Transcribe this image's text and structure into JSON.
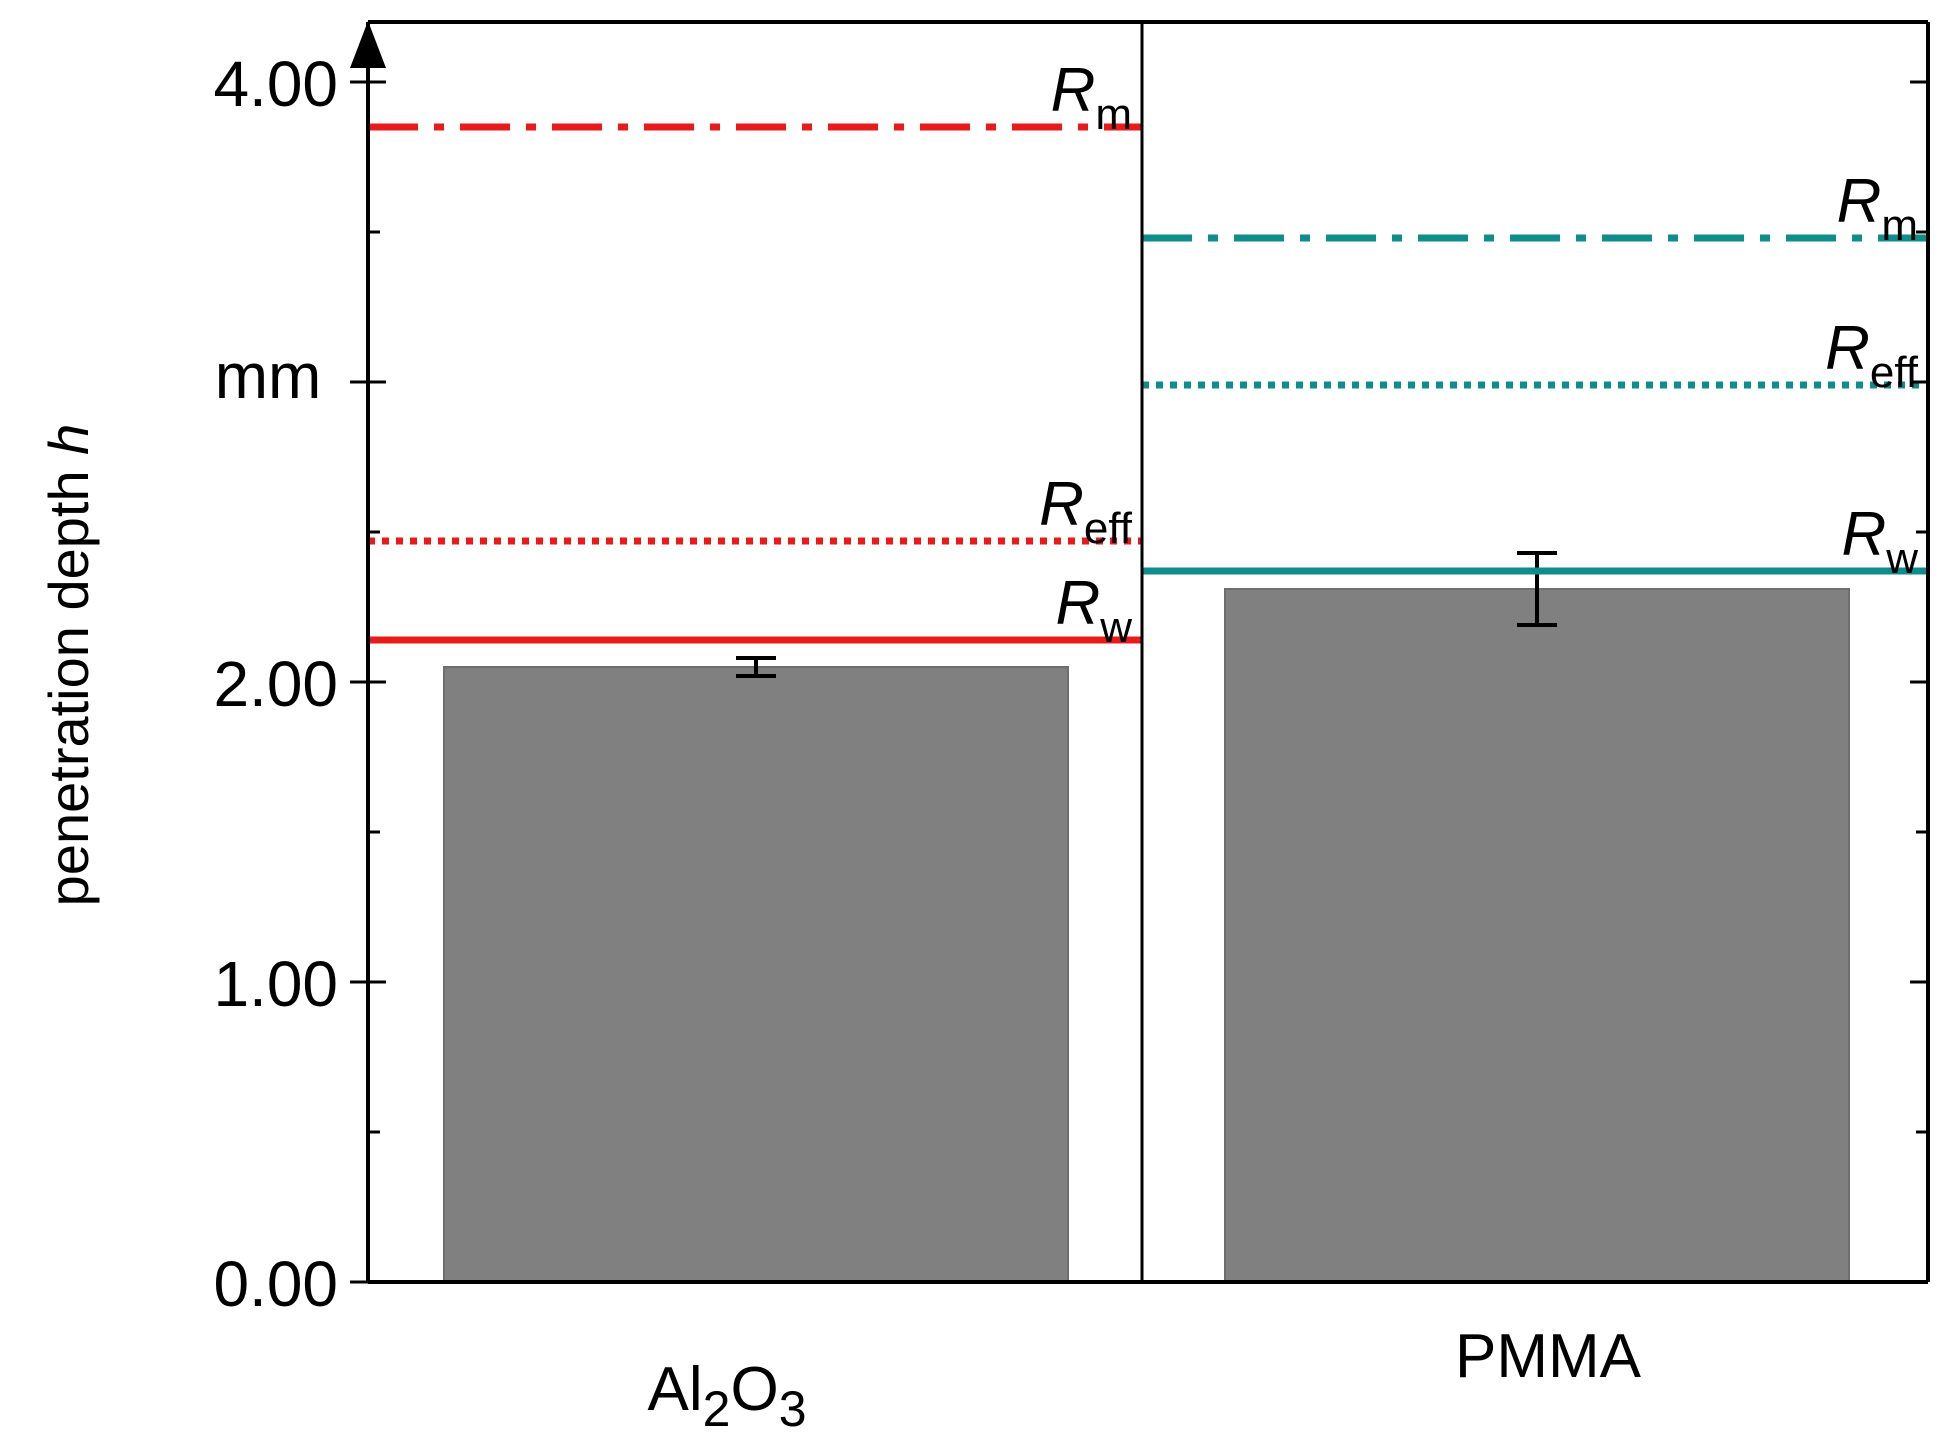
{
  "chart_data": {
    "type": "bar",
    "ylabel_parts": [
      "penetration depth ",
      "h"
    ],
    "y_unit": "mm",
    "ylim": [
      0,
      4.2
    ],
    "y_tick_labels": [
      {
        "value": 0,
        "label": "0.00"
      },
      {
        "value": 1,
        "label": "1.00"
      },
      {
        "value": 2,
        "label": "2.00"
      },
      {
        "value": 4,
        "label": "4.00"
      }
    ],
    "y_minor_ticks": [
      0.5,
      1.5,
      2.5,
      3.5
    ],
    "panels": [
      {
        "category": "Al2O3",
        "label_parts": [
          "Al",
          "2",
          "O",
          "3"
        ],
        "value": 2.05,
        "error": 0.03,
        "color": "#e81a1a",
        "ranges": [
          {
            "name": "R_m",
            "italic": "R",
            "sub": "m",
            "value": 3.85,
            "style": "dashdot"
          },
          {
            "name": "R_eff",
            "italic": "R",
            "sub": "eff",
            "value": 2.47,
            "style": "dotted"
          },
          {
            "name": "R_w",
            "italic": "R",
            "sub": "w",
            "value": 2.14,
            "style": "solid"
          }
        ]
      },
      {
        "category": "PMMA",
        "label_parts": [
          "PMMA",
          "",
          "",
          ""
        ],
        "value": 2.31,
        "error": 0.12,
        "color": "#0f8c8c",
        "ranges": [
          {
            "name": "R_m",
            "italic": "R",
            "sub": "m",
            "value": 3.48,
            "style": "dashdot"
          },
          {
            "name": "R_eff",
            "italic": "R",
            "sub": "eff",
            "value": 2.99,
            "style": "dotted"
          },
          {
            "name": "R_w",
            "italic": "R",
            "sub": "w",
            "value": 2.37,
            "style": "solid"
          }
        ]
      }
    ],
    "bar_color": "#808080"
  }
}
